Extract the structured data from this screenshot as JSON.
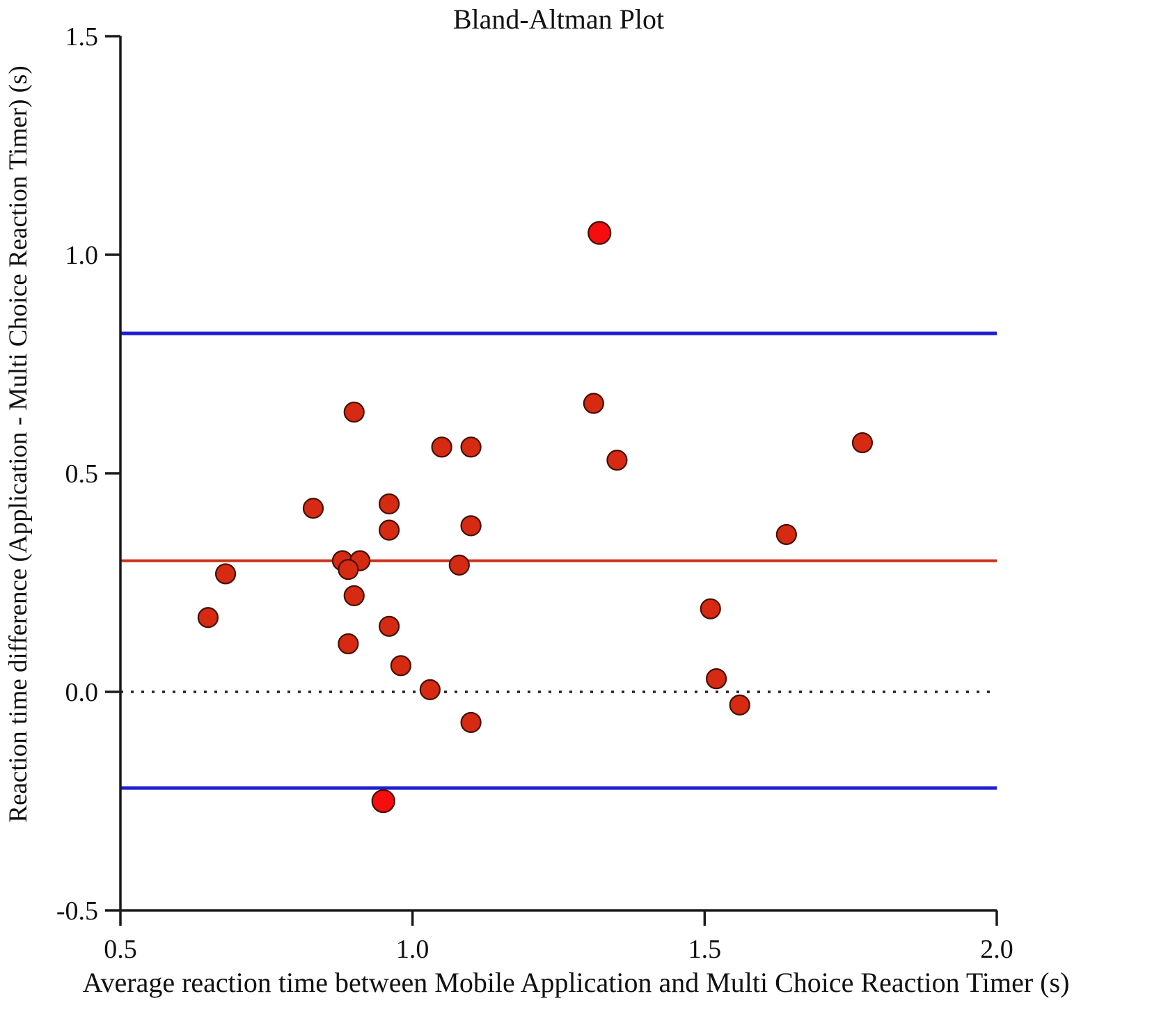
{
  "chart_data": {
    "type": "scatter",
    "title": "Bland-Altman Plot",
    "xlabel": "Average reaction time between Mobile Application and Multi Choice Reaction Timer (s)",
    "ylabel": "Reaction time difference (Application - Multi Choice Reaction Timer) (s)",
    "xlim": [
      0.5,
      2.0
    ],
    "ylim": [
      -0.5,
      1.5
    ],
    "x_ticks": [
      0.5,
      1.0,
      1.5,
      2.0
    ],
    "x_tick_labels": [
      "0.5",
      "1.0",
      "1.5",
      "2.0"
    ],
    "y_ticks": [
      1.5,
      1.0,
      0.5,
      0.0,
      -0.5
    ],
    "y_tick_labels": [
      "1.5",
      "1.0",
      "0.5",
      "0.0",
      "-0.5"
    ],
    "grid": false,
    "legend": "none",
    "axis_color": "#1a1a1a",
    "reference_lines": [
      {
        "name": "upper-limit-of-agreement",
        "y": 0.82,
        "color": "#1f1fd0",
        "style": "solid",
        "width": 5
      },
      {
        "name": "mean-difference",
        "y": 0.3,
        "color": "#cb3118",
        "style": "solid",
        "width": 4
      },
      {
        "name": "zero-line",
        "y": 0.0,
        "color": "#222222",
        "style": "dotted",
        "width": 3.5
      },
      {
        "name": "lower-limit-of-agreement",
        "y": -0.22,
        "color": "#1f1fd0",
        "style": "solid",
        "width": 5
      }
    ],
    "series": [
      {
        "name": "reaction-time-differences",
        "marker": "circle",
        "color": "#d62a12",
        "edge_color": "#431005",
        "radius": 14,
        "points": [
          [
            0.9,
            0.64
          ],
          [
            1.05,
            0.56
          ],
          [
            1.1,
            0.56
          ],
          [
            1.31,
            0.66
          ],
          [
            1.35,
            0.53
          ],
          [
            1.77,
            0.57
          ],
          [
            0.83,
            0.42
          ],
          [
            0.96,
            0.43
          ],
          [
            0.96,
            0.37
          ],
          [
            1.1,
            0.38
          ],
          [
            1.64,
            0.36
          ],
          [
            0.88,
            0.3
          ],
          [
            0.91,
            0.3
          ],
          [
            0.89,
            0.28
          ],
          [
            1.08,
            0.29
          ],
          [
            0.68,
            0.27
          ],
          [
            0.9,
            0.22
          ],
          [
            0.65,
            0.17
          ],
          [
            1.51,
            0.19
          ],
          [
            0.96,
            0.15
          ],
          [
            0.89,
            0.11
          ],
          [
            0.98,
            0.06
          ],
          [
            1.03,
            0.005
          ],
          [
            1.52,
            0.03
          ],
          [
            1.56,
            -0.03
          ],
          [
            1.1,
            -0.07
          ]
        ]
      },
      {
        "name": "bright-outliers",
        "marker": "circle",
        "color": "#f60d0d",
        "edge_color": "#431005",
        "radius": 16,
        "points": [
          [
            1.32,
            1.05
          ],
          [
            0.95,
            -0.25
          ]
        ]
      }
    ]
  }
}
